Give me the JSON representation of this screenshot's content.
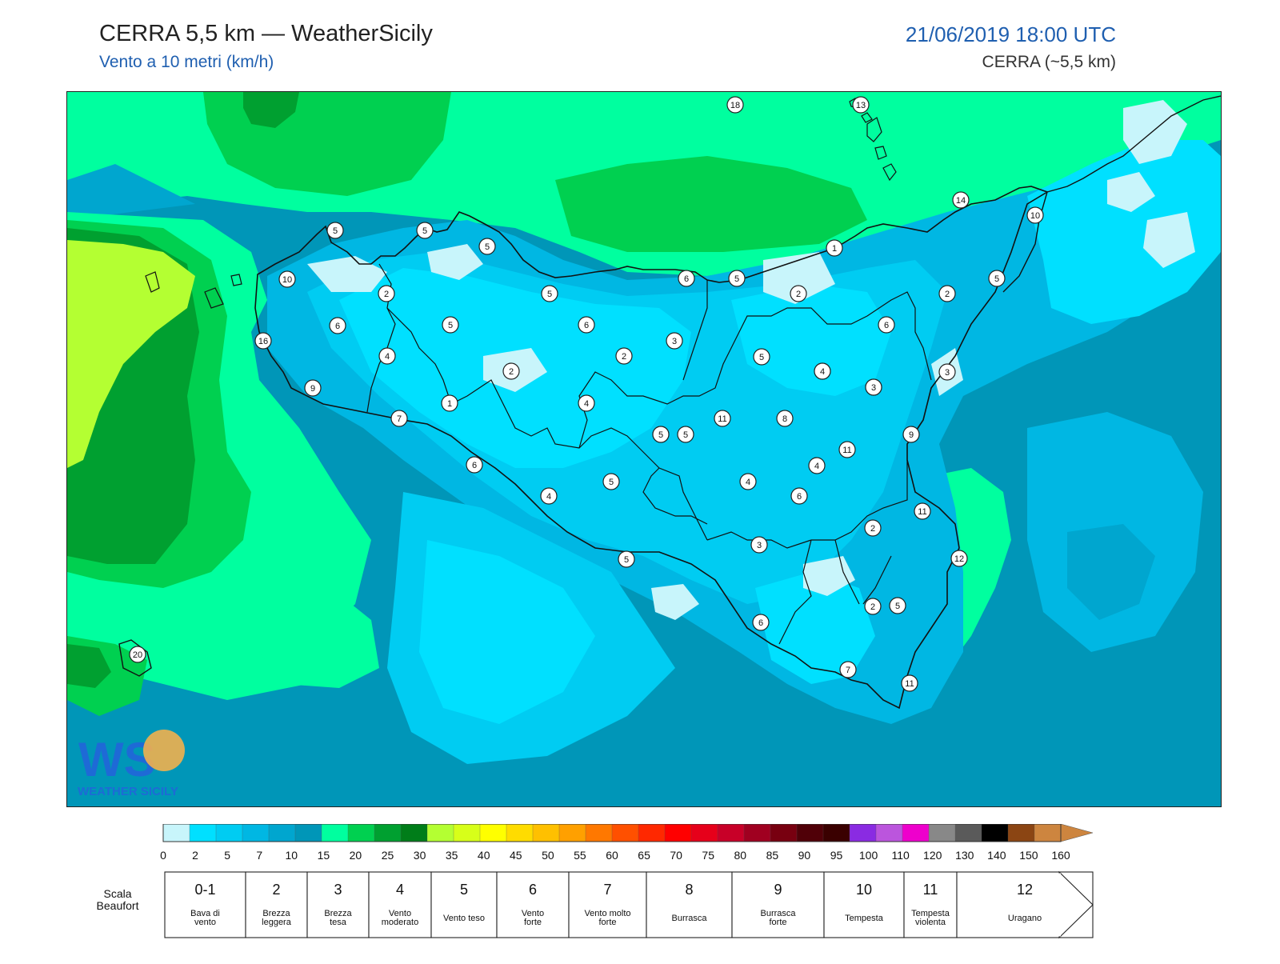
{
  "header": {
    "title": "CERRA 5,5 km — WeatherSicily",
    "subtitle": "Vento a 10 metri (km/h)",
    "datetime": "21/06/2019 18:00 UTC",
    "model": "CERRA (~5,5 km)"
  },
  "logo": {
    "text": "WEATHER SICILY",
    "mark": "WS"
  },
  "map": {
    "station_values": [
      18,
      13,
      14,
      10,
      5,
      5,
      5,
      10,
      2,
      6,
      16,
      4,
      9,
      7,
      6,
      4,
      5,
      5,
      2,
      1,
      4,
      5,
      6,
      5,
      2,
      3,
      5,
      6,
      5,
      5,
      4,
      1,
      2,
      6,
      3,
      2,
      2,
      5,
      4,
      3,
      8,
      11,
      4,
      5,
      6,
      9,
      11,
      11,
      2,
      12,
      3,
      4,
      5,
      3,
      5,
      6,
      7,
      11,
      20
    ]
  },
  "colorbar": {
    "ticks": [
      "0",
      "2",
      "5",
      "7",
      "10",
      "15",
      "20",
      "25",
      "30",
      "35",
      "40",
      "45",
      "50",
      "55",
      "60",
      "65",
      "70",
      "75",
      "80",
      "85",
      "90",
      "95",
      "100",
      "110",
      "120",
      "130",
      "140",
      "150",
      "160"
    ],
    "colors": [
      "#c8f5fb",
      "#00e0ff",
      "#00ccf2",
      "#00b7e3",
      "#00a6cf",
      "#0096b8",
      "#00ff9f",
      "#00d050",
      "#00a030",
      "#007d19",
      "#b4ff32",
      "#d7ff19",
      "#ffff00",
      "#ffdc00",
      "#ffc000",
      "#ffa000",
      "#ff7800",
      "#ff5000",
      "#ff2800",
      "#ff0000",
      "#e6001a",
      "#c80028",
      "#a00020",
      "#780010",
      "#500008",
      "#3a0000",
      "#8a2be2",
      "#bb55dd",
      "#ee00cc",
      "#888888",
      "#5a5a5a",
      "#000000",
      "#8b4513",
      "#cd853f"
    ]
  },
  "beaufort": {
    "label": "Scala Beaufort",
    "classes": [
      {
        "num": "0-1",
        "desc": "Bava di vento"
      },
      {
        "num": "2",
        "desc": "Brezza leggera"
      },
      {
        "num": "3",
        "desc": "Brezza tesa"
      },
      {
        "num": "4",
        "desc": "Vento moderato"
      },
      {
        "num": "5",
        "desc": "Vento teso"
      },
      {
        "num": "6",
        "desc": "Vento forte"
      },
      {
        "num": "7",
        "desc": "Vento molto forte"
      },
      {
        "num": "8",
        "desc": "Burrasca"
      },
      {
        "num": "9",
        "desc": "Burrasca forte"
      },
      {
        "num": "10",
        "desc": "Tempesta"
      },
      {
        "num": "11",
        "desc": "Tempesta violenta"
      },
      {
        "num": "12",
        "desc": "Uragano"
      }
    ]
  }
}
